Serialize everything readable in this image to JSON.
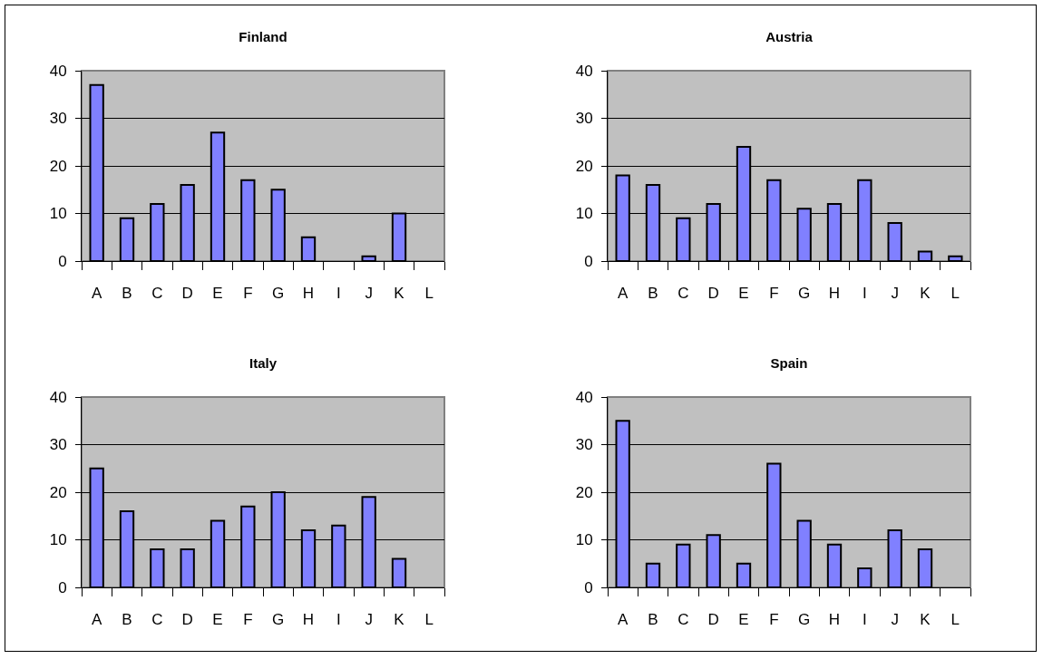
{
  "chart_data": [
    {
      "type": "bar",
      "title": "Finland",
      "categories": [
        "A",
        "B",
        "C",
        "D",
        "E",
        "F",
        "G",
        "H",
        "I",
        "J",
        "K",
        "L"
      ],
      "values": [
        37,
        9,
        12,
        16,
        27,
        17,
        15,
        5,
        null,
        1,
        10,
        null
      ],
      "color": "#8080ff",
      "ylim": [
        0,
        40
      ],
      "yticks": [
        0,
        10,
        20,
        30,
        40
      ],
      "grid": "y"
    },
    {
      "type": "bar",
      "title": "Austria",
      "categories": [
        "A",
        "B",
        "C",
        "D",
        "E",
        "F",
        "G",
        "H",
        "I",
        "J",
        "K",
        "L"
      ],
      "values": [
        18,
        16,
        9,
        12,
        24,
        17,
        11,
        12,
        17,
        8,
        2,
        1
      ],
      "color": "#8080ff",
      "ylim": [
        0,
        40
      ],
      "yticks": [
        0,
        10,
        20,
        30,
        40
      ],
      "grid": "y"
    },
    {
      "type": "bar",
      "title": "Italy",
      "categories": [
        "A",
        "B",
        "C",
        "D",
        "E",
        "F",
        "G",
        "H",
        "I",
        "J",
        "K",
        "L"
      ],
      "values": [
        25,
        16,
        8,
        8,
        14,
        17,
        20,
        12,
        13,
        19,
        6,
        null
      ],
      "color": "#8080ff",
      "ylim": [
        0,
        40
      ],
      "yticks": [
        0,
        10,
        20,
        30,
        40
      ],
      "grid": "y"
    },
    {
      "type": "bar",
      "title": "Spain",
      "categories": [
        "A",
        "B",
        "C",
        "D",
        "E",
        "F",
        "G",
        "H",
        "I",
        "J",
        "K",
        "L"
      ],
      "values": [
        35,
        5,
        9,
        11,
        5,
        26,
        14,
        9,
        4,
        12,
        8,
        null
      ],
      "color": "#8080ff",
      "ylim": [
        0,
        40
      ],
      "yticks": [
        0,
        10,
        20,
        30,
        40
      ],
      "grid": "y"
    }
  ]
}
